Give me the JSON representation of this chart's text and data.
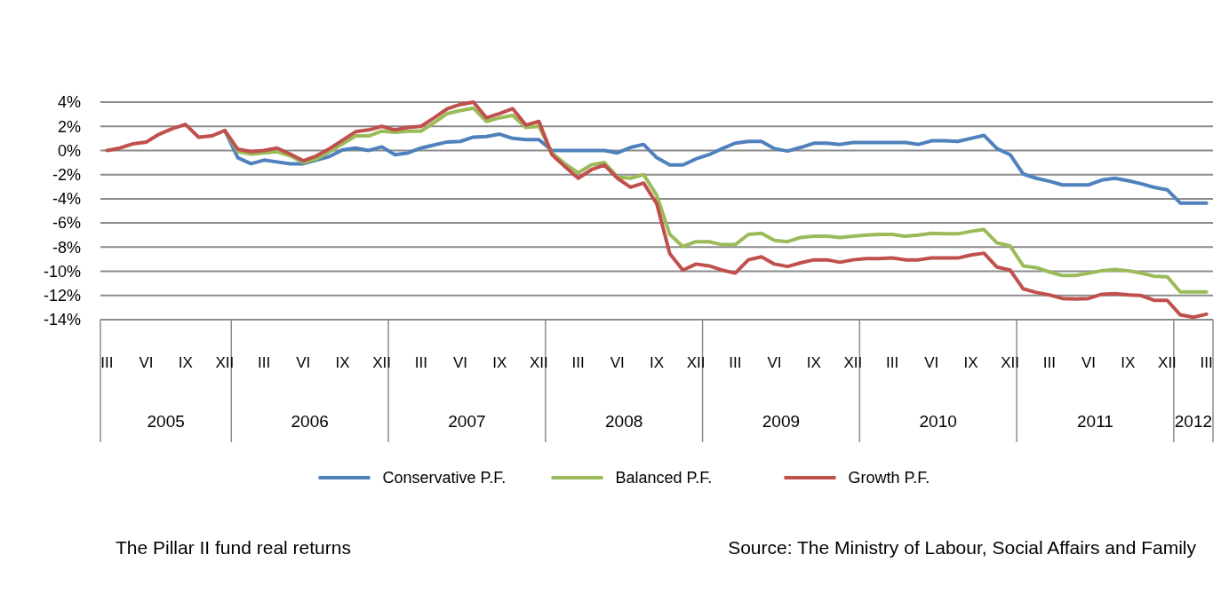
{
  "chart_data": {
    "type": "line",
    "categories": [
      "III",
      null,
      null,
      "VI",
      null,
      null,
      "IX",
      null,
      null,
      "XII",
      null,
      null,
      "III",
      null,
      null,
      "VI",
      null,
      null,
      "IX",
      null,
      null,
      "XII",
      null,
      null,
      "III",
      null,
      null,
      "VI",
      null,
      null,
      "IX",
      null,
      null,
      "XII",
      null,
      null,
      "III",
      null,
      null,
      "VI",
      null,
      null,
      "IX",
      null,
      null,
      "XII",
      null,
      null,
      "III",
      null,
      null,
      "VI",
      null,
      null,
      "IX",
      null,
      null,
      "XII",
      null,
      null,
      "III",
      null,
      null,
      "VI",
      null,
      null,
      "IX",
      null,
      null,
      "XII",
      null,
      null,
      "III",
      null,
      null,
      "VI",
      null,
      null,
      "IX",
      null,
      null,
      "XII",
      null,
      null,
      "III"
    ],
    "ylim": [
      -14,
      4
    ],
    "yticks": [
      {
        "value": 4,
        "label": "4%"
      },
      {
        "value": 2,
        "label": "2%"
      },
      {
        "value": 0,
        "label": "0%"
      },
      {
        "value": -2,
        "label": "-2%"
      },
      {
        "value": -4,
        "label": "-4%"
      },
      {
        "value": -6,
        "label": "-6%"
      },
      {
        "value": -8,
        "label": "-8%"
      },
      {
        "value": -10,
        "label": "-10%"
      },
      {
        "value": -12,
        "label": "-12%"
      },
      {
        "value": -14,
        "label": "-14%"
      }
    ],
    "grid": "y",
    "legend": "bottom",
    "line_style": "solid",
    "series": [
      {
        "name": "Conservative P.F.",
        "color": "#4f81bd",
        "values": [
          null,
          null,
          null,
          null,
          null,
          null,
          null,
          null,
          null,
          1.65,
          -0.6,
          -1.1,
          -0.8,
          -0.95,
          -1.1,
          -1.1,
          -0.8,
          -0.5,
          0.05,
          0.2,
          0,
          0.3,
          -0.35,
          -0.2,
          0.2,
          0.45,
          0.7,
          0.75,
          1.1,
          1.15,
          1.35,
          1,
          0.9,
          0.9,
          0,
          0,
          0,
          0,
          0,
          -0.2,
          0.25,
          0.5,
          -0.6,
          -1.2,
          -1.2,
          -0.7,
          -0.35,
          0.15,
          0.6,
          0.75,
          0.75,
          0.15,
          -0.05,
          0.25,
          0.6,
          0.6,
          0.5,
          0.65,
          0.65,
          0.65,
          0.65,
          0.65,
          0.5,
          0.8,
          0.8,
          0.75,
          1,
          1.25,
          0.15,
          -0.35,
          -1.95,
          -2.3,
          -2.55,
          -2.85,
          -2.85,
          -2.85,
          -2.45,
          -2.3,
          -2.5,
          -2.75,
          -3.05,
          -3.25,
          -4.35,
          -4.35,
          -4.35
        ]
      },
      {
        "name": "Balanced P.F.",
        "color": "#9bbb59",
        "values": [
          null,
          null,
          null,
          null,
          null,
          null,
          null,
          null,
          null,
          1.65,
          -0.1,
          -0.3,
          -0.2,
          -0.1,
          -0.45,
          -1,
          -0.7,
          -0.1,
          0.55,
          1.2,
          1.2,
          1.6,
          1.5,
          1.6,
          1.6,
          2.3,
          3.05,
          3.3,
          3.5,
          2.4,
          2.7,
          2.9,
          1.9,
          2,
          -0.2,
          -1.1,
          -1.85,
          -1.2,
          -1,
          -2.2,
          -2.3,
          -2,
          -3.7,
          -6.95,
          -7.95,
          -7.55,
          -7.55,
          -7.8,
          -7.8,
          -6.95,
          -6.85,
          -7.45,
          -7.55,
          -7.2,
          -7.1,
          -7.1,
          -7.2,
          -7.1,
          -7,
          -6.95,
          -6.95,
          -7.1,
          -7,
          -6.85,
          -6.9,
          -6.9,
          -6.7,
          -6.55,
          -7.65,
          -7.9,
          -9.55,
          -9.7,
          -10.05,
          -10.35,
          -10.35,
          -10.15,
          -9.95,
          -9.85,
          -9.95,
          -10.15,
          -10.4,
          -10.45,
          -11.7,
          -11.7,
          -11.7
        ]
      },
      {
        "name": "Growth P.F.",
        "color": "#c0504d",
        "values": [
          0,
          0.2,
          0.55,
          0.7,
          1.35,
          1.8,
          2.15,
          1.1,
          1.2,
          1.65,
          0.1,
          -0.1,
          0,
          0.2,
          -0.3,
          -0.85,
          -0.45,
          0.15,
          0.85,
          1.55,
          1.7,
          2,
          1.7,
          1.9,
          2,
          2.7,
          3.45,
          3.8,
          4,
          2.7,
          3.05,
          3.45,
          2.1,
          2.4,
          -0.35,
          -1.35,
          -2.3,
          -1.6,
          -1.2,
          -2.3,
          -3.05,
          -2.7,
          -4.4,
          -8.55,
          -9.9,
          -9.4,
          -9.55,
          -9.9,
          -10.15,
          -9.05,
          -8.8,
          -9.4,
          -9.6,
          -9.3,
          -9.05,
          -9.05,
          -9.25,
          -9.05,
          -8.95,
          -8.95,
          -8.9,
          -9.05,
          -9.05,
          -8.9,
          -8.9,
          -8.9,
          -8.65,
          -8.5,
          -9.65,
          -9.9,
          -11.45,
          -11.75,
          -11.95,
          -12.25,
          -12.3,
          -12.25,
          -11.9,
          -11.85,
          -11.95,
          -12,
          -12.4,
          -12.4,
          -13.6,
          -13.8,
          -13.55
        ]
      }
    ],
    "annotations": [
      "2005",
      "2006",
      "2007",
      "2008",
      "2009",
      "2010",
      "2011",
      "2012",
      "The Pillar II fund real returns",
      "Source: The Ministry of Labour, Social Affairs and Family"
    ]
  }
}
